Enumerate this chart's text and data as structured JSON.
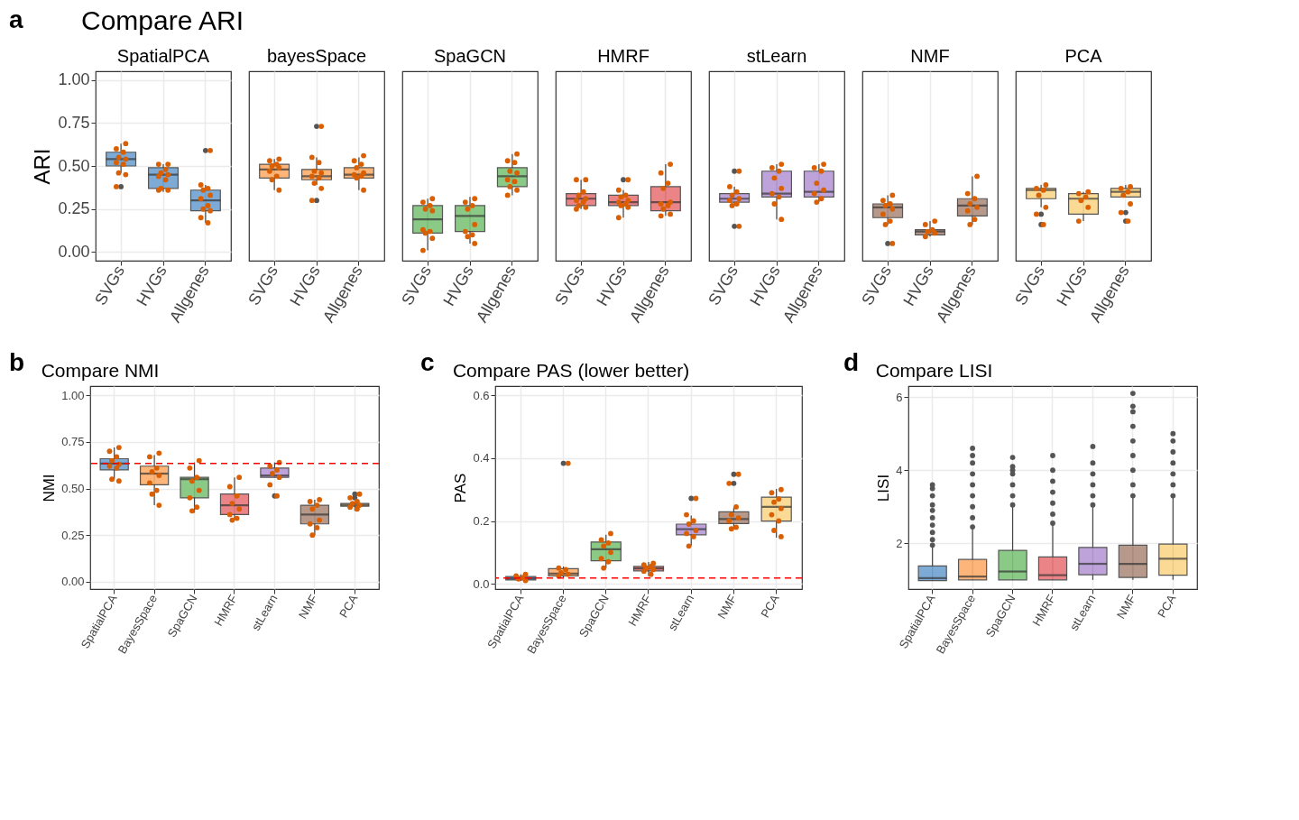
{
  "chart_data": [
    {
      "type": "box",
      "title": "Compare ARI",
      "subtitle": "SpatialPCA",
      "ylabel": "ARI",
      "annotations": [
        "a"
      ],
      "categories": [
        "SVGs",
        "HVGs",
        "Allgenes"
      ],
      "colors": [
        "#6fa3d1",
        "#6fa3d1",
        "#6fa3d1"
      ],
      "ylim": [
        -0.05,
        1.05
      ],
      "yticks": [
        {
          "value": 0,
          "label": "0.00"
        },
        {
          "value": 0.25,
          "label": "0.25"
        },
        {
          "value": 0.5,
          "label": "0.50"
        },
        {
          "value": 0.75,
          "label": "0.75"
        },
        {
          "value": 1,
          "label": "1.00"
        }
      ],
      "grid": true,
      "boxes": [
        {
          "low": 0.46,
          "q1": 0.5,
          "median": 0.54,
          "q3": 0.58,
          "high": 0.63,
          "outliers": [
            0.38
          ]
        },
        {
          "low": 0.35,
          "q1": 0.37,
          "median": 0.45,
          "q3": 0.49,
          "high": 0.51
        },
        {
          "low": 0.17,
          "q1": 0.24,
          "median": 0.3,
          "q3": 0.36,
          "high": 0.39,
          "outliers": [
            0.59
          ]
        }
      ],
      "series": [
        {
          "type": "scatter",
          "color": "#d95f02",
          "x": [
            "SVGs",
            "SVGs",
            "SVGs",
            "SVGs",
            "SVGs",
            "SVGs",
            "SVGs",
            "SVGs",
            "SVGs",
            "SVGs",
            "HVGs",
            "HVGs",
            "HVGs",
            "HVGs",
            "HVGs",
            "HVGs",
            "HVGs",
            "HVGs",
            "HVGs",
            "HVGs",
            "Allgenes",
            "Allgenes",
            "Allgenes",
            "Allgenes",
            "Allgenes",
            "Allgenes",
            "Allgenes",
            "Allgenes",
            "Allgenes",
            "Allgenes",
            "Allgenes"
          ],
          "values": [
            0.63,
            0.6,
            0.58,
            0.55,
            0.54,
            0.52,
            0.51,
            0.46,
            0.45,
            0.38,
            0.51,
            0.51,
            0.48,
            0.46,
            0.45,
            0.44,
            0.42,
            0.37,
            0.36,
            0.36,
            0.59,
            0.39,
            0.37,
            0.36,
            0.33,
            0.31,
            0.27,
            0.25,
            0.24,
            0.2,
            0.17
          ]
        }
      ]
    },
    {
      "type": "box",
      "subtitle": "bayesSpace",
      "categories": [
        "SVGs",
        "HVGs",
        "Allgenes"
      ],
      "colors": [
        "#fdae6b",
        "#fdae6b",
        "#fdae6b"
      ],
      "ylim": [
        -0.05,
        1.05
      ],
      "grid": true,
      "tick_labels": "x",
      "boxes": [
        {
          "low": 0.36,
          "q1": 0.43,
          "median": 0.48,
          "q3": 0.51,
          "high": 0.54
        },
        {
          "low": 0.39,
          "q1": 0.42,
          "median": 0.44,
          "q3": 0.48,
          "high": 0.55,
          "outliers": [
            0.73,
            0.3
          ]
        },
        {
          "low": 0.36,
          "q1": 0.43,
          "median": 0.45,
          "q3": 0.49,
          "high": 0.55
        }
      ],
      "series": [
        {
          "type": "scatter",
          "color": "#d95f02",
          "x": [
            "SVGs",
            "SVGs",
            "SVGs",
            "SVGs",
            "SVGs",
            "SVGs",
            "SVGs",
            "SVGs",
            "SVGs",
            "HVGs",
            "HVGs",
            "HVGs",
            "HVGs",
            "HVGs",
            "HVGs",
            "HVGs",
            "HVGs",
            "HVGs",
            "HVGs",
            "Allgenes",
            "Allgenes",
            "Allgenes",
            "Allgenes",
            "Allgenes",
            "Allgenes",
            "Allgenes",
            "Allgenes",
            "Allgenes"
          ],
          "values": [
            0.54,
            0.53,
            0.51,
            0.5,
            0.49,
            0.47,
            0.44,
            0.42,
            0.36,
            0.73,
            0.55,
            0.52,
            0.47,
            0.46,
            0.44,
            0.43,
            0.4,
            0.37,
            0.3,
            0.56,
            0.53,
            0.51,
            0.49,
            0.46,
            0.45,
            0.44,
            0.43,
            0.36
          ]
        }
      ]
    },
    {
      "type": "box",
      "subtitle": "SpaGCN",
      "categories": [
        "SVGs",
        "HVGs",
        "Allgenes"
      ],
      "colors": [
        "#7fc57a",
        "#7fc57a",
        "#7fc57a"
      ],
      "ylim": [
        -0.05,
        1.05
      ],
      "grid": true,
      "tick_labels": "x",
      "boxes": [
        {
          "low": 0.01,
          "q1": 0.11,
          "median": 0.19,
          "q3": 0.27,
          "high": 0.31
        },
        {
          "low": 0.05,
          "q1": 0.12,
          "median": 0.21,
          "q3": 0.27,
          "high": 0.32
        },
        {
          "low": 0.33,
          "q1": 0.38,
          "median": 0.44,
          "q3": 0.49,
          "high": 0.57
        }
      ],
      "series": [
        {
          "type": "scatter",
          "color": "#d95f02",
          "x": [
            "SVGs",
            "SVGs",
            "SVGs",
            "SVGs",
            "SVGs",
            "SVGs",
            "SVGs",
            "SVGs",
            "SVGs",
            "SVGs",
            "HVGs",
            "HVGs",
            "HVGs",
            "HVGs",
            "HVGs",
            "HVGs",
            "HVGs",
            "HVGs",
            "HVGs",
            "Allgenes",
            "Allgenes",
            "Allgenes",
            "Allgenes",
            "Allgenes",
            "Allgenes",
            "Allgenes",
            "Allgenes",
            "Allgenes",
            "Allgenes"
          ],
          "values": [
            0.31,
            0.29,
            0.27,
            0.25,
            0.24,
            0.13,
            0.12,
            0.11,
            0.08,
            0.01,
            0.31,
            0.29,
            0.27,
            0.25,
            0.16,
            0.12,
            0.1,
            0.09,
            0.05,
            0.57,
            0.53,
            0.52,
            0.47,
            0.46,
            0.42,
            0.41,
            0.38,
            0.36,
            0.33
          ]
        }
      ]
    },
    {
      "type": "box",
      "subtitle": "HMRF",
      "categories": [
        "SVGs",
        "HVGs",
        "Allgenes"
      ],
      "colors": [
        "#e8777b",
        "#e8777b",
        "#e8777b"
      ],
      "ylim": [
        -0.05,
        1.05
      ],
      "grid": true,
      "tick_labels": "x",
      "boxes": [
        {
          "low": 0.25,
          "q1": 0.27,
          "median": 0.31,
          "q3": 0.34,
          "high": 0.42
        },
        {
          "low": 0.2,
          "q1": 0.27,
          "median": 0.29,
          "q3": 0.33,
          "high": 0.36,
          "outliers": [
            0.42
          ]
        },
        {
          "low": 0.21,
          "q1": 0.24,
          "median": 0.29,
          "q3": 0.38,
          "high": 0.51
        }
      ],
      "series": [
        {
          "type": "scatter",
          "color": "#d95f02",
          "x": [
            "SVGs",
            "SVGs",
            "SVGs",
            "SVGs",
            "SVGs",
            "SVGs",
            "SVGs",
            "SVGs",
            "SVGs",
            "SVGs",
            "HVGs",
            "HVGs",
            "HVGs",
            "HVGs",
            "HVGs",
            "HVGs",
            "HVGs",
            "HVGs",
            "HVGs",
            "HVGs",
            "Allgenes",
            "Allgenes",
            "Allgenes",
            "Allgenes",
            "Allgenes",
            "Allgenes",
            "Allgenes",
            "Allgenes",
            "Allgenes",
            "Allgenes"
          ],
          "values": [
            0.42,
            0.42,
            0.35,
            0.33,
            0.31,
            0.3,
            0.29,
            0.27,
            0.26,
            0.25,
            0.42,
            0.36,
            0.33,
            0.32,
            0.3,
            0.29,
            0.28,
            0.27,
            0.26,
            0.2,
            0.51,
            0.46,
            0.4,
            0.37,
            0.29,
            0.28,
            0.27,
            0.25,
            0.22,
            0.21
          ]
        }
      ]
    },
    {
      "type": "box",
      "subtitle": "stLearn",
      "categories": [
        "SVGs",
        "HVGs",
        "Allgenes"
      ],
      "colors": [
        "#b89ad6",
        "#b89ad6",
        "#b89ad6"
      ],
      "ylim": [
        -0.05,
        1.05
      ],
      "grid": true,
      "tick_labels": "x",
      "boxes": [
        {
          "low": 0.27,
          "q1": 0.29,
          "median": 0.31,
          "q3": 0.34,
          "high": 0.38,
          "outliers": [
            0.47,
            0.15
          ]
        },
        {
          "low": 0.19,
          "q1": 0.32,
          "median": 0.34,
          "q3": 0.47,
          "high": 0.51
        },
        {
          "low": 0.29,
          "q1": 0.32,
          "median": 0.35,
          "q3": 0.47,
          "high": 0.51
        }
      ],
      "series": [
        {
          "type": "scatter",
          "color": "#d95f02",
          "x": [
            "SVGs",
            "SVGs",
            "SVGs",
            "SVGs",
            "SVGs",
            "SVGs",
            "SVGs",
            "SVGs",
            "SVGs",
            "HVGs",
            "HVGs",
            "HVGs",
            "HVGs",
            "HVGs",
            "HVGs",
            "HVGs",
            "HVGs",
            "HVGs",
            "Allgenes",
            "Allgenes",
            "Allgenes",
            "Allgenes",
            "Allgenes",
            "Allgenes",
            "Allgenes",
            "Allgenes"
          ],
          "values": [
            0.47,
            0.38,
            0.35,
            0.33,
            0.31,
            0.3,
            0.28,
            0.27,
            0.15,
            0.51,
            0.49,
            0.47,
            0.43,
            0.37,
            0.34,
            0.32,
            0.28,
            0.19,
            0.51,
            0.49,
            0.47,
            0.4,
            0.36,
            0.34,
            0.31,
            0.29
          ]
        }
      ]
    },
    {
      "type": "box",
      "subtitle": "NMF",
      "categories": [
        "SVGs",
        "HVGs",
        "Allgenes"
      ],
      "colors": [
        "#b08e80",
        "#b08e80",
        "#b08e80"
      ],
      "ylim": [
        -0.05,
        1.05
      ],
      "grid": true,
      "tick_labels": "x",
      "boxes": [
        {
          "low": 0.16,
          "q1": 0.2,
          "median": 0.26,
          "q3": 0.28,
          "high": 0.33,
          "outliers": [
            0.05
          ]
        },
        {
          "low": 0.09,
          "q1": 0.1,
          "median": 0.12,
          "q3": 0.13,
          "high": 0.18
        },
        {
          "low": 0.16,
          "q1": 0.21,
          "median": 0.27,
          "q3": 0.31,
          "high": 0.44
        }
      ],
      "series": [
        {
          "type": "scatter",
          "color": "#d95f02",
          "x": [
            "SVGs",
            "SVGs",
            "SVGs",
            "SVGs",
            "SVGs",
            "SVGs",
            "SVGs",
            "SVGs",
            "SVGs",
            "HVGs",
            "HVGs",
            "HVGs",
            "HVGs",
            "HVGs",
            "HVGs",
            "Allgenes",
            "Allgenes",
            "Allgenes",
            "Allgenes",
            "Allgenes",
            "Allgenes",
            "Allgenes",
            "Allgenes"
          ],
          "values": [
            0.33,
            0.3,
            0.28,
            0.27,
            0.25,
            0.22,
            0.18,
            0.16,
            0.05,
            0.18,
            0.16,
            0.13,
            0.12,
            0.11,
            0.09,
            0.44,
            0.34,
            0.31,
            0.28,
            0.26,
            0.24,
            0.19,
            0.16
          ]
        }
      ]
    },
    {
      "type": "box",
      "subtitle": "PCA",
      "categories": [
        "SVGs",
        "HVGs",
        "Allgenes"
      ],
      "colors": [
        "#fbd68b",
        "#fbd68b",
        "#fbd68b"
      ],
      "ylim": [
        -0.05,
        1.05
      ],
      "grid": true,
      "tick_labels": "x",
      "boxes": [
        {
          "low": 0.26,
          "q1": 0.31,
          "median": 0.36,
          "q3": 0.37,
          "high": 0.39,
          "outliers": [
            0.22,
            0.16
          ]
        },
        {
          "low": 0.18,
          "q1": 0.22,
          "median": 0.31,
          "q3": 0.34,
          "high": 0.35
        },
        {
          "low": 0.32,
          "q1": 0.32,
          "median": 0.35,
          "q3": 0.37,
          "high": 0.39,
          "outliers": [
            0.23,
            0.18
          ]
        }
      ],
      "series": [
        {
          "type": "scatter",
          "color": "#d95f02",
          "x": [
            "SVGs",
            "SVGs",
            "SVGs",
            "SVGs",
            "SVGs",
            "SVGs",
            "SVGs",
            "HVGs",
            "HVGs",
            "HVGs",
            "HVGs",
            "HVGs",
            "HVGs",
            "Allgenes",
            "Allgenes",
            "Allgenes",
            "Allgenes",
            "Allgenes",
            "Allgenes",
            "Allgenes"
          ],
          "values": [
            0.39,
            0.37,
            0.36,
            0.33,
            0.26,
            0.22,
            0.16,
            0.35,
            0.34,
            0.32,
            0.3,
            0.26,
            0.18,
            0.38,
            0.37,
            0.35,
            0.33,
            0.28,
            0.23,
            0.18
          ]
        }
      ]
    },
    {
      "type": "box",
      "title": "Compare NMI",
      "ylabel": "NMI",
      "annotations": [
        "b"
      ],
      "categories": [
        "SpatialPCA",
        "BayesSpace",
        "SpaGCN",
        "HMRF",
        "stLearn",
        "NMF",
        "PCA"
      ],
      "colors": [
        "#6fa3d1",
        "#fdae6b",
        "#7fc57a",
        "#e8777b",
        "#b89ad6",
        "#b08e80",
        "#fbd68b"
      ],
      "ylim": [
        -0.04,
        1.05
      ],
      "yticks": [
        {
          "value": 0,
          "label": "0.00"
        },
        {
          "value": 0.25,
          "label": "0.25"
        },
        {
          "value": 0.5,
          "label": "0.50"
        },
        {
          "value": 0.75,
          "label": "0.75"
        },
        {
          "value": 1,
          "label": "1.00"
        }
      ],
      "grid": true,
      "ref_lines": [
        {
          "axis": "y",
          "value": 0.634,
          "color": "#ff0000",
          "line_style": "dashed"
        }
      ],
      "boxes": [
        {
          "low": 0.55,
          "q1": 0.6,
          "median": 0.634,
          "q3": 0.66,
          "high": 0.72
        },
        {
          "low": 0.41,
          "q1": 0.52,
          "median": 0.58,
          "q3": 0.62,
          "high": 0.68
        },
        {
          "low": 0.37,
          "q1": 0.45,
          "median": 0.55,
          "q3": 0.56,
          "high": 0.64
        },
        {
          "low": 0.33,
          "q1": 0.36,
          "median": 0.41,
          "q3": 0.47,
          "high": 0.56
        },
        {
          "low": 0.56,
          "q1": 0.56,
          "median": 0.57,
          "q3": 0.61,
          "high": 0.64,
          "outliers": [
            0.46
          ]
        },
        {
          "low": 0.25,
          "q1": 0.31,
          "median": 0.36,
          "q3": 0.41,
          "high": 0.44
        },
        {
          "low": 0.38,
          "q1": 0.405,
          "median": 0.412,
          "q3": 0.42,
          "high": 0.43,
          "outliers": [
            0.47,
            0.45
          ]
        }
      ],
      "series": [
        {
          "type": "scatter",
          "color": "#d95f02",
          "x": [
            "SpatialPCA",
            "SpatialPCA",
            "SpatialPCA",
            "SpatialPCA",
            "SpatialPCA",
            "SpatialPCA",
            "SpatialPCA",
            "SpatialPCA",
            "SpatialPCA",
            "BayesSpace",
            "BayesSpace",
            "BayesSpace",
            "BayesSpace",
            "BayesSpace",
            "BayesSpace",
            "BayesSpace",
            "BayesSpace",
            "BayesSpace",
            "SpaGCN",
            "SpaGCN",
            "SpaGCN",
            "SpaGCN",
            "SpaGCN",
            "SpaGCN",
            "SpaGCN",
            "SpaGCN",
            "HMRF",
            "HMRF",
            "HMRF",
            "HMRF",
            "HMRF",
            "HMRF",
            "HMRF",
            "HMRF",
            "stLearn",
            "stLearn",
            "stLearn",
            "stLearn",
            "stLearn",
            "stLearn",
            "stLearn",
            "NMF",
            "NMF",
            "NMF",
            "NMF",
            "NMF",
            "NMF",
            "NMF",
            "NMF",
            "PCA",
            "PCA",
            "PCA",
            "PCA",
            "PCA",
            "PCA",
            "PCA"
          ],
          "values": [
            0.72,
            0.7,
            0.67,
            0.65,
            0.63,
            0.62,
            0.61,
            0.55,
            0.54,
            0.69,
            0.67,
            0.61,
            0.59,
            0.57,
            0.53,
            0.49,
            0.47,
            0.41,
            0.65,
            0.61,
            0.56,
            0.54,
            0.49,
            0.45,
            0.4,
            0.38,
            0.56,
            0.51,
            0.46,
            0.42,
            0.39,
            0.36,
            0.34,
            0.33,
            0.64,
            0.62,
            0.6,
            0.58,
            0.56,
            0.52,
            0.46,
            0.44,
            0.43,
            0.41,
            0.39,
            0.33,
            0.31,
            0.29,
            0.25,
            0.47,
            0.45,
            0.43,
            0.42,
            0.41,
            0.4,
            0.39
          ]
        }
      ]
    },
    {
      "type": "box",
      "title": "Compare PAS (lower better)",
      "ylabel": "PAS",
      "annotations": [
        "c"
      ],
      "categories": [
        "SpatialPCA",
        "BayesSpace",
        "SpaGCN",
        "HMRF",
        "stLearn",
        "NMF",
        "PCA"
      ],
      "colors": [
        "#6fa3d1",
        "#fdae6b",
        "#7fc57a",
        "#e8777b",
        "#b89ad6",
        "#b08e80",
        "#fbd68b"
      ],
      "ylim": [
        -0.017,
        0.63
      ],
      "yticks": [
        {
          "value": 0,
          "label": "0.0"
        },
        {
          "value": 0.2,
          "label": "0.2"
        },
        {
          "value": 0.4,
          "label": "0.4"
        },
        {
          "value": 0.6,
          "label": "0.6"
        }
      ],
      "grid": true,
      "ref_lines": [
        {
          "axis": "y",
          "value": 0.018,
          "color": "#ff0000",
          "line_style": "dashed"
        }
      ],
      "boxes": [
        {
          "low": 0.009,
          "q1": 0.012,
          "median": 0.017,
          "q3": 0.023,
          "high": 0.03
        },
        {
          "low": 0.02,
          "q1": 0.025,
          "median": 0.032,
          "q3": 0.048,
          "high": 0.055,
          "outliers": [
            0.384
          ]
        },
        {
          "low": 0.05,
          "q1": 0.073,
          "median": 0.11,
          "q3": 0.133,
          "high": 0.156
        },
        {
          "low": 0.025,
          "q1": 0.041,
          "median": 0.049,
          "q3": 0.055,
          "high": 0.069
        },
        {
          "low": 0.122,
          "q1": 0.156,
          "median": 0.174,
          "q3": 0.19,
          "high": 0.217,
          "outliers": [
            0.272
          ]
        },
        {
          "low": 0.174,
          "q1": 0.192,
          "median": 0.206,
          "q3": 0.229,
          "high": 0.243,
          "outliers": [
            0.349,
            0.32
          ]
        },
        {
          "low": 0.147,
          "q1": 0.2,
          "median": 0.245,
          "q3": 0.276,
          "high": 0.302
        }
      ],
      "series": [
        {
          "type": "scatter",
          "color": "#d95f02",
          "x": [
            "SpatialPCA",
            "SpatialPCA",
            "SpatialPCA",
            "SpatialPCA",
            "SpatialPCA",
            "BayesSpace",
            "BayesSpace",
            "BayesSpace",
            "BayesSpace",
            "BayesSpace",
            "BayesSpace",
            "SpaGCN",
            "SpaGCN",
            "SpaGCN",
            "SpaGCN",
            "SpaGCN",
            "SpaGCN",
            "SpaGCN",
            "SpaGCN",
            "HMRF",
            "HMRF",
            "HMRF",
            "HMRF",
            "HMRF",
            "HMRF",
            "HMRF",
            "stLearn",
            "stLearn",
            "stLearn",
            "stLearn",
            "stLearn",
            "stLearn",
            "stLearn",
            "stLearn",
            "NMF",
            "NMF",
            "NMF",
            "NMF",
            "NMF",
            "NMF",
            "NMF",
            "NMF",
            "PCA",
            "PCA",
            "PCA",
            "PCA",
            "PCA",
            "PCA",
            "PCA",
            "PCA",
            "PCA"
          ],
          "values": [
            0.03,
            0.025,
            0.02,
            0.015,
            0.01,
            0.384,
            0.05,
            0.045,
            0.035,
            0.03,
            0.025,
            0.16,
            0.14,
            0.13,
            0.12,
            0.1,
            0.08,
            0.07,
            0.05,
            0.065,
            0.06,
            0.055,
            0.05,
            0.045,
            0.04,
            0.03,
            0.272,
            0.22,
            0.2,
            0.19,
            0.17,
            0.16,
            0.15,
            0.12,
            0.349,
            0.32,
            0.245,
            0.22,
            0.21,
            0.2,
            0.18,
            0.175,
            0.3,
            0.29,
            0.27,
            0.26,
            0.24,
            0.22,
            0.2,
            0.17,
            0.15
          ]
        }
      ]
    },
    {
      "type": "box",
      "title": "Compare LISI",
      "ylabel": "LISI",
      "annotations": [
        "d"
      ],
      "categories": [
        "SpatialPCA",
        "BayesSpace",
        "SpaGCN",
        "HMRF",
        "stLearn",
        "NMF",
        "PCA"
      ],
      "colors": [
        "#6fa3d1",
        "#fdae6b",
        "#7fc57a",
        "#e8777b",
        "#b89ad6",
        "#b08e80",
        "#fbd68b"
      ],
      "ylim": [
        0.75,
        6.3
      ],
      "yticks": [
        2,
        4,
        6
      ],
      "grid": true,
      "boxes": [
        {
          "low": 0.98,
          "q1": 0.98,
          "median": 1.05,
          "q3": 1.38,
          "high": 1.93,
          "outliers": [
            1.95,
            2.1,
            2.3,
            2.5,
            2.7,
            2.9,
            3.05,
            3.3,
            3.5,
            3.6
          ]
        },
        {
          "low": 1.0,
          "q1": 1.0,
          "median": 1.09,
          "q3": 1.56,
          "high": 2.42,
          "outliers": [
            2.45,
            2.7,
            3.0,
            3.3,
            3.6,
            3.9,
            4.2,
            4.4,
            4.6
          ]
        },
        {
          "low": 1.0,
          "q1": 1.0,
          "median": 1.23,
          "q3": 1.81,
          "high": 3.02,
          "outliers": [
            3.05,
            3.3,
            3.6,
            3.9,
            4.0,
            4.1,
            4.35
          ]
        },
        {
          "low": 1.0,
          "q1": 1.0,
          "median": 1.13,
          "q3": 1.63,
          "high": 2.51,
          "outliers": [
            2.55,
            2.8,
            3.1,
            3.4,
            3.7,
            4.0,
            4.4
          ]
        },
        {
          "low": 1.0,
          "q1": 1.14,
          "median": 1.44,
          "q3": 1.89,
          "high": 3.0,
          "outliers": [
            3.05,
            3.3,
            3.6,
            3.9,
            4.2,
            4.65
          ]
        },
        {
          "low": 1.0,
          "q1": 1.07,
          "median": 1.44,
          "q3": 1.95,
          "high": 3.26,
          "outliers": [
            3.3,
            3.6,
            4.0,
            4.4,
            4.8,
            5.2,
            5.6,
            5.75,
            6.1
          ]
        },
        {
          "low": 1.0,
          "q1": 1.13,
          "median": 1.58,
          "q3": 1.98,
          "high": 3.26,
          "outliers": [
            3.3,
            3.6,
            3.9,
            4.2,
            4.5,
            4.8,
            5.0
          ]
        }
      ]
    }
  ]
}
